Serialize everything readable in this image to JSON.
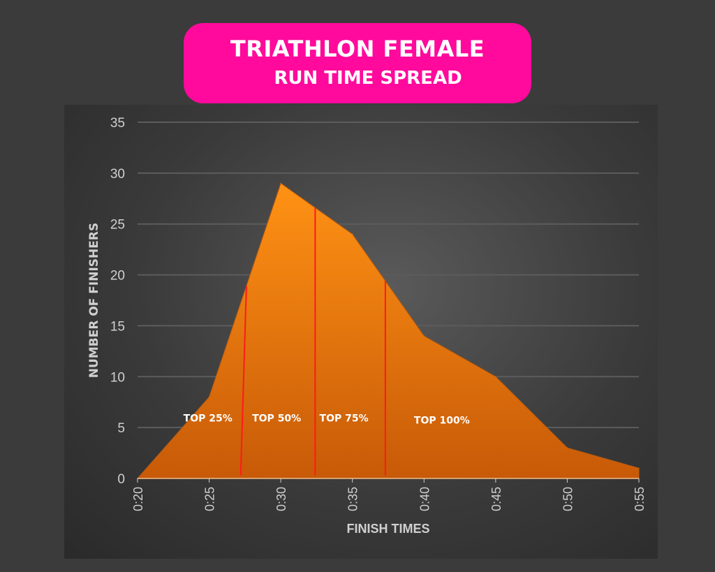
{
  "title": {
    "line1": "TRIATHLON FEMALE",
    "line2": "RUN TIME SPREAD"
  },
  "chart_data": {
    "type": "area",
    "title": "TRIATHLON FEMALE RUN TIME SPREAD",
    "xlabel": "FINISH TIMES",
    "ylabel": "NUMBER OF FINISHERS",
    "categories": [
      "0:20",
      "0:25",
      "0:30",
      "0:35",
      "0:40",
      "0:45",
      "0:50",
      "0:55"
    ],
    "x_minutes": [
      20,
      25,
      30,
      35,
      40,
      45,
      50,
      55
    ],
    "values": [
      0,
      8,
      29,
      24,
      14,
      10,
      3,
      1
    ],
    "ylim": [
      0,
      35
    ],
    "yticks": [
      0,
      5,
      10,
      15,
      20,
      25,
      30,
      35
    ],
    "grid": true,
    "colors": {
      "fill_top": "#ff9214",
      "fill_bottom": "#c85a08",
      "marker": "#ff1a1a",
      "grid": "#5c5c5c",
      "text": "#d0d0d0"
    },
    "markers": [
      {
        "x_bottom": 27.2,
        "x_top": 27.6
      },
      {
        "x_bottom": 32.4,
        "x_top": 32.4
      },
      {
        "x_bottom": 37.3,
        "x_top": 37.3
      }
    ],
    "annotations": [
      {
        "text": "TOP 25%",
        "x": 23.2,
        "y": 5.6
      },
      {
        "text": "TOP 50%",
        "x": 28.0,
        "y": 5.6
      },
      {
        "text": "TOP 75%",
        "x": 32.7,
        "y": 5.6
      },
      {
        "text": "TOP 100%",
        "x": 39.3,
        "y": 5.4
      }
    ]
  }
}
